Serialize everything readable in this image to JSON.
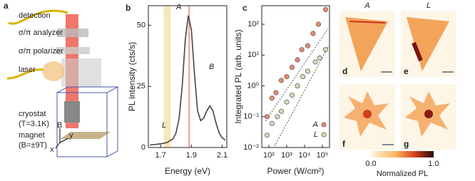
{
  "setup": {
    "label": "a",
    "texts": [
      "detection",
      "σ/π analyzer",
      "σ/π polarizer",
      "laser",
      "cryostat",
      "(T=3.1K)",
      "magnet",
      "(B=±9T)"
    ],
    "axes": [
      "B",
      "y",
      "x"
    ]
  },
  "chart_data": [
    {
      "type": "line",
      "label": "b",
      "xlabel": "Energy (eV)",
      "ylabel": "PL intensity (cts/s)",
      "x": [
        1.63,
        1.66,
        1.7,
        1.74,
        1.78,
        1.8,
        1.82,
        1.84,
        1.86,
        1.88,
        1.9,
        1.92,
        1.94,
        1.96,
        1.98,
        2.0,
        2.02,
        2.04,
        2.06,
        2.08,
        2.1,
        2.12
      ],
      "values": [
        1,
        1.2,
        1.5,
        2,
        3.5,
        6,
        12,
        25,
        44,
        54,
        48,
        30,
        15,
        11,
        12,
        15,
        17,
        15,
        10,
        6,
        4,
        3
      ],
      "color": "#444444",
      "annotations": [
        "A",
        "B",
        "L"
      ],
      "shaded_range": [
        1.72,
        1.765
      ],
      "shaded_color": "#f6e6b8",
      "marker_line": 1.885,
      "marker_color": "#f08a6a",
      "xlim": [
        1.62,
        2.13
      ],
      "ylim": [
        0,
        58
      ],
      "xticks": [
        1.7,
        1.9,
        2.1
      ],
      "yticks": [
        0,
        25,
        50
      ]
    },
    {
      "type": "scatter",
      "label": "c",
      "xlabel": "Power (W/cm²)",
      "ylabel": "Integrated PL (arb. units)",
      "xscale": "log",
      "yscale": "log",
      "legend": "lower right",
      "series": [
        {
          "name": "A",
          "color": "#e98a6c",
          "x": [
            80,
            150,
            250,
            500,
            1000,
            2000,
            4000,
            7000,
            15000,
            30000,
            60000,
            150000
          ],
          "values": [
            0.1,
            0.4,
            0.6,
            1.5,
            2,
            4,
            7,
            15,
            20,
            50,
            100,
            300
          ]
        },
        {
          "name": "L",
          "color": "#cfdcb8",
          "x": [
            80,
            150,
            300,
            500,
            1000,
            2000,
            4000,
            8000,
            15000,
            40000,
            70000,
            150000
          ],
          "values": [
            0.025,
            0.06,
            0.1,
            0.15,
            0.3,
            0.5,
            1,
            2,
            3,
            6,
            8,
            15
          ]
        }
      ],
      "xlim": [
        40,
        250000
      ],
      "ylim": [
        0.01,
        400
      ],
      "xticks": [
        {
          "value": 100,
          "label": "10²"
        },
        {
          "value": 1000,
          "label": "10³"
        },
        {
          "value": 10000,
          "label": "10⁴"
        },
        {
          "value": 100000,
          "label": "10⁵"
        }
      ],
      "yticks": [
        {
          "value": 0.01,
          "label": "10⁻²"
        },
        {
          "value": 0.1,
          "label": "10⁻¹"
        },
        {
          "value": 1,
          "label": "10⁰"
        },
        {
          "value": 10,
          "label": "10¹"
        },
        {
          "value": 100,
          "label": "10²"
        }
      ]
    }
  ],
  "maps": {
    "columns": [
      "A",
      "L"
    ],
    "panels": [
      "d",
      "e",
      "f",
      "g"
    ],
    "colorbar": {
      "ticks": [
        {
          "value": 0,
          "label": "0.0"
        },
        {
          "value": 1,
          "label": "1.0"
        }
      ],
      "label": "Normalized PL"
    }
  }
}
